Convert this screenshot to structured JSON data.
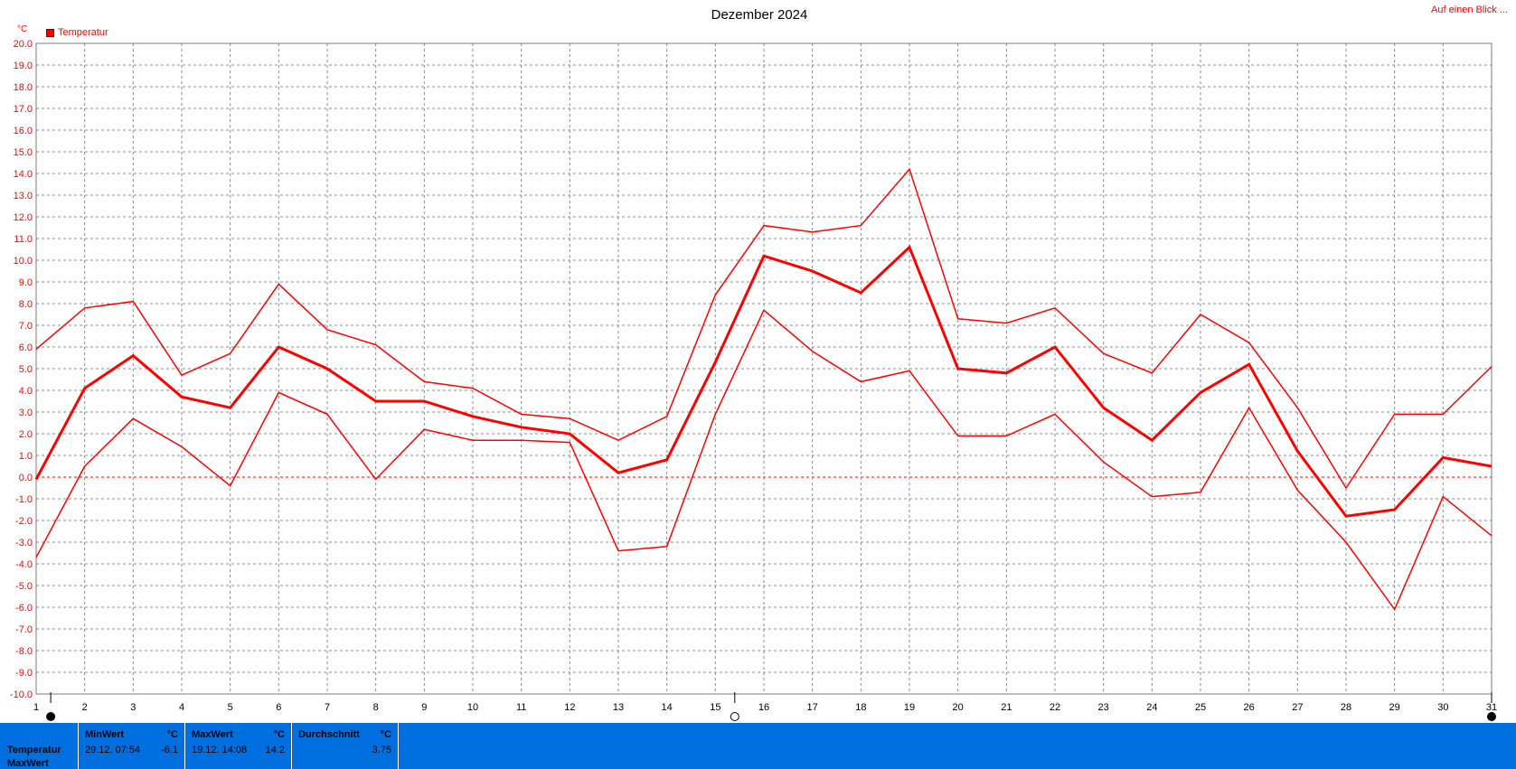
{
  "page": {
    "title": "Dezember 2024",
    "overview_link": "Auf einen Blick ...",
    "unit": "°C",
    "legend_label": "Temperatur",
    "accent_color": "#ff0000",
    "footer_color": "#0070e0"
  },
  "chart_data": {
    "type": "line",
    "title": "Dezember 2024",
    "ylabel": "°C",
    "ylim": [
      -10,
      20
    ],
    "xlim": [
      1,
      31
    ],
    "grid": true,
    "legend_placement": "top-left",
    "x_ticks": [
      "1",
      "2",
      "3",
      "4",
      "5",
      "6",
      "7",
      "8",
      "9",
      "10",
      "11",
      "12",
      "13",
      "14",
      "15",
      "16",
      "17",
      "18",
      "19",
      "20",
      "21",
      "22",
      "23",
      "24",
      "25",
      "26",
      "27",
      "28",
      "29",
      "30",
      "31"
    ],
    "y_ticks": [
      "20.0",
      "19.0",
      "18.0",
      "17.0",
      "16.0",
      "15.0",
      "14.0",
      "13.0",
      "12.0",
      "11.0",
      "10.0",
      "9.0",
      "8.0",
      "7.0",
      "6.0",
      "5.0",
      "4.0",
      "3.0",
      "2.0",
      "1.0",
      "0.0",
      "-1.0",
      "-2.0",
      "-3.0",
      "-4.0",
      "-5.0",
      "-6.0",
      "-7.0",
      "-8.0",
      "-9.0",
      "-10.0"
    ],
    "x": [
      1,
      2,
      3,
      4,
      5,
      6,
      7,
      8,
      9,
      10,
      11,
      12,
      13,
      14,
      15,
      16,
      17,
      18,
      19,
      20,
      21,
      22,
      23,
      24,
      25,
      26,
      27,
      28,
      29,
      30,
      31
    ],
    "series": [
      {
        "values": [
          5.9,
          7.8,
          8.1,
          4.7,
          5.7,
          8.9,
          6.8,
          6.1,
          4.4,
          4.1,
          2.9,
          2.7,
          1.7,
          2.8,
          8.4,
          11.6,
          11.3,
          11.6,
          14.2,
          7.3,
          7.1,
          7.8,
          5.7,
          4.8,
          7.5,
          6.2,
          3.2,
          -0.5,
          2.9,
          2.9,
          5.1
        ]
      },
      {
        "values": [
          -0.1,
          4.1,
          5.6,
          3.7,
          3.2,
          6.0,
          5.0,
          3.5,
          3.5,
          2.8,
          2.3,
          2.0,
          0.2,
          0.8,
          5.3,
          10.2,
          9.5,
          8.5,
          10.6,
          5.0,
          4.8,
          6.0,
          3.2,
          1.7,
          3.9,
          5.2,
          1.2,
          -1.8,
          -1.5,
          0.9,
          0.5
        ]
      },
      {
        "values": [
          -3.7,
          0.5,
          2.7,
          1.4,
          -0.4,
          3.9,
          2.9,
          -0.1,
          2.2,
          1.7,
          1.7,
          1.6,
          -3.4,
          -3.2,
          2.9,
          7.7,
          5.8,
          4.4,
          4.9,
          1.9,
          1.9,
          2.9,
          0.7,
          -0.9,
          -0.7,
          3.2,
          -0.6,
          -3.0,
          -6.1,
          -0.9,
          -2.7
        ]
      }
    ]
  },
  "footer": {
    "row_labels": [
      "Temperatur",
      "MaxWert"
    ],
    "min": {
      "header": "MinWert",
      "unit": "°C",
      "datetime": "29.12.  07:54",
      "value": "-6.1"
    },
    "max": {
      "header": "MaxWert",
      "unit": "°C",
      "datetime": "19.12.  14:08",
      "value": "14.2"
    },
    "avg": {
      "header": "Durchschnitt",
      "unit": "°C",
      "value": "3.75"
    }
  }
}
